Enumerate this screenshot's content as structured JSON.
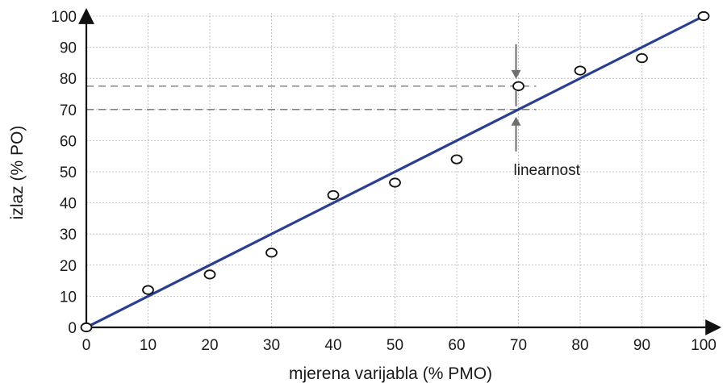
{
  "chart_data": {
    "type": "scatter",
    "title": "",
    "xlabel": "mjerena varijabla (% PMO)",
    "ylabel": "izlaz (% PO)",
    "xlim": [
      0,
      100
    ],
    "ylim": [
      0,
      100
    ],
    "x_ticks": [
      "0",
      "10",
      "20",
      "30",
      "40",
      "50",
      "60",
      "70",
      "80",
      "90",
      "100"
    ],
    "y_ticks": [
      "0",
      "10",
      "20",
      "30",
      "40",
      "50",
      "60",
      "70",
      "80",
      "90",
      "100"
    ],
    "grid": true,
    "points": [
      {
        "x": 0,
        "y": 0
      },
      {
        "x": 10,
        "y": 12
      },
      {
        "x": 20,
        "y": 17
      },
      {
        "x": 30,
        "y": 24
      },
      {
        "x": 40,
        "y": 42.5
      },
      {
        "x": 50,
        "y": 46.5
      },
      {
        "x": 60,
        "y": 54
      },
      {
        "x": 70,
        "y": 77.5
      },
      {
        "x": 80,
        "y": 82.5
      },
      {
        "x": 90,
        "y": 86.5
      },
      {
        "x": 100,
        "y": 100
      }
    ],
    "ideal_line": {
      "from": [
        0,
        0
      ],
      "to": [
        100,
        100
      ]
    },
    "annotation": {
      "text": "linearnost",
      "x": 70,
      "y_measured": 77.5,
      "y_ideal": 70
    },
    "colors": {
      "line": "#2a3f8f",
      "grid": "#b5b5b5",
      "dash": "#707070",
      "arrow": "#6e6e6e",
      "axis": "#111111"
    }
  }
}
